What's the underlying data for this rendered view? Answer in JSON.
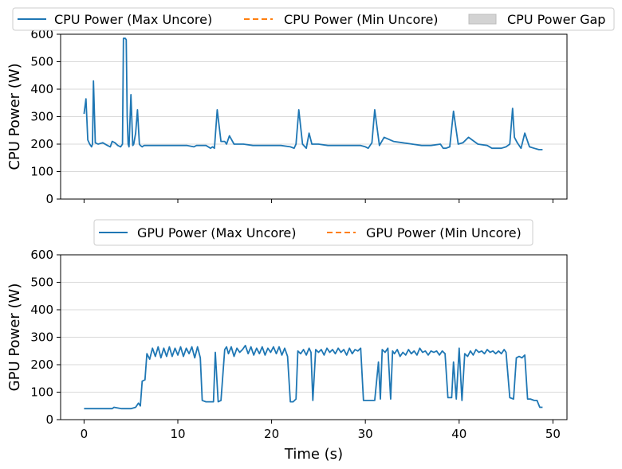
{
  "chart_data": [
    {
      "type": "line",
      "ylabel": "CPU Power (W)",
      "xlabel": "",
      "xlim": [
        -2.5,
        51.5
      ],
      "ylim": [
        0,
        600
      ],
      "yticks": [
        0,
        100,
        200,
        300,
        400,
        500,
        600
      ],
      "xticks": [
        0,
        10,
        20,
        30,
        40,
        50
      ],
      "show_xtick_labels": false,
      "grid": "y",
      "legend": {
        "placement": "top, above axes",
        "entries": [
          {
            "label": "CPU Power (Max Uncore)",
            "style": "solid",
            "color": "#1f77b4"
          },
          {
            "label": "CPU Power (Min Uncore)",
            "style": "dashed",
            "color": "#ff7f0e"
          },
          {
            "label": "CPU Power Gap",
            "style": "fill",
            "color": "#d3d3d3"
          }
        ]
      },
      "series": [
        {
          "name": "CPU Power (Max Uncore)",
          "color": "#1f77b4",
          "x": [
            0.0,
            0.2,
            0.4,
            0.6,
            0.8,
            0.9,
            1.0,
            1.2,
            1.5,
            2.0,
            2.5,
            2.8,
            3.0,
            3.3,
            3.6,
            3.9,
            4.1,
            4.2,
            4.4,
            4.5,
            4.6,
            4.7,
            4.8,
            5.0,
            5.2,
            5.3,
            5.5,
            5.7,
            5.9,
            6.0,
            6.2,
            6.4,
            6.6,
            7.0,
            8.0,
            9.0,
            10.0,
            11.0,
            11.7,
            12.0,
            13.0,
            13.5,
            13.7,
            13.9,
            14.2,
            14.6,
            15.0,
            15.2,
            15.5,
            16.0,
            17.0,
            18.0,
            19.0,
            20.0,
            21.0,
            22.0,
            22.4,
            22.6,
            22.9,
            23.3,
            23.7,
            24.0,
            24.3,
            25.0,
            26.0,
            27.0,
            28.0,
            29.0,
            29.5,
            30.0,
            30.3,
            30.7,
            31.0,
            31.5,
            32.0,
            33.0,
            34.0,
            35.0,
            36.0,
            37.0,
            38.0,
            38.3,
            38.6,
            39.0,
            39.4,
            39.9,
            40.4,
            41.0,
            42.0,
            43.0,
            43.5,
            44.0,
            44.5,
            45.0,
            45.4,
            45.7,
            45.9,
            46.2,
            46.6,
            47.0,
            47.5,
            48.0,
            48.5,
            48.9
          ],
          "values": [
            310,
            365,
            215,
            200,
            190,
            200,
            430,
            205,
            200,
            205,
            195,
            190,
            210,
            205,
            195,
            190,
            200,
            585,
            585,
            580,
            300,
            200,
            190,
            380,
            195,
            200,
            240,
            325,
            200,
            195,
            190,
            195,
            195,
            195,
            195,
            195,
            195,
            195,
            190,
            195,
            195,
            185,
            190,
            185,
            325,
            210,
            210,
            200,
            230,
            200,
            200,
            195,
            195,
            195,
            195,
            190,
            185,
            200,
            325,
            200,
            185,
            240,
            200,
            200,
            195,
            195,
            195,
            195,
            195,
            190,
            185,
            205,
            325,
            195,
            225,
            210,
            205,
            200,
            195,
            195,
            200,
            185,
            185,
            190,
            320,
            200,
            205,
            225,
            200,
            195,
            185,
            185,
            185,
            190,
            200,
            330,
            225,
            205,
            185,
            240,
            190,
            185,
            180,
            180
          ]
        }
      ]
    },
    {
      "type": "line",
      "ylabel": "GPU Power (W)",
      "xlabel": "Time (s)",
      "xlim": [
        -2.5,
        51.5
      ],
      "ylim": [
        0,
        600
      ],
      "yticks": [
        0,
        100,
        200,
        300,
        400,
        500,
        600
      ],
      "xticks": [
        0,
        10,
        20,
        30,
        40,
        50
      ],
      "xtick_labels": [
        "0",
        "10",
        "20",
        "30",
        "40",
        "50"
      ],
      "grid": "y",
      "legend": {
        "placement": "top, above axes",
        "entries": [
          {
            "label": "GPU Power (Max Uncore)",
            "style": "solid",
            "color": "#1f77b4"
          },
          {
            "label": "GPU Power (Min Uncore)",
            "style": "dashed",
            "color": "#ff7f0e"
          }
        ]
      },
      "series": [
        {
          "name": "GPU Power (Max Uncore)",
          "color": "#1f77b4",
          "x": [
            0.0,
            1.0,
            2.0,
            3.0,
            3.2,
            4.0,
            5.0,
            5.5,
            5.8,
            6.0,
            6.2,
            6.5,
            6.7,
            7.0,
            7.3,
            7.6,
            7.9,
            8.2,
            8.5,
            8.8,
            9.1,
            9.4,
            9.7,
            10.0,
            10.3,
            10.6,
            10.9,
            11.2,
            11.5,
            11.8,
            12.1,
            12.4,
            12.6,
            13.0,
            13.5,
            13.8,
            14.0,
            14.3,
            14.6,
            15.0,
            15.2,
            15.4,
            15.7,
            16.0,
            16.3,
            16.6,
            16.9,
            17.2,
            17.5,
            17.8,
            18.1,
            18.4,
            18.7,
            19.0,
            19.3,
            19.6,
            19.9,
            20.2,
            20.5,
            20.8,
            21.1,
            21.4,
            21.7,
            22.0,
            22.3,
            22.6,
            22.8,
            23.1,
            23.4,
            23.7,
            24.0,
            24.2,
            24.4,
            24.7,
            25.0,
            25.3,
            25.6,
            25.9,
            26.2,
            26.5,
            26.8,
            27.1,
            27.4,
            27.7,
            28.0,
            28.3,
            28.6,
            28.9,
            29.2,
            29.5,
            29.8,
            30.0,
            30.5,
            31.0,
            31.4,
            31.6,
            31.8,
            32.1,
            32.4,
            32.7,
            32.9,
            33.1,
            33.4,
            33.7,
            34.0,
            34.3,
            34.6,
            34.9,
            35.2,
            35.5,
            35.8,
            36.1,
            36.4,
            36.7,
            37.0,
            37.3,
            37.6,
            37.9,
            38.2,
            38.5,
            38.8,
            39.0,
            39.2,
            39.4,
            39.7,
            40.0,
            40.3,
            40.6,
            40.9,
            41.2,
            41.5,
            41.8,
            42.1,
            42.4,
            42.7,
            43.0,
            43.3,
            43.6,
            43.9,
            44.2,
            44.5,
            44.8,
            45.0,
            45.4,
            45.8,
            46.1,
            46.4,
            46.7,
            47.0,
            47.3,
            47.6,
            48.0,
            48.3,
            48.6,
            48.9
          ],
          "values": [
            40,
            40,
            40,
            40,
            45,
            40,
            40,
            45,
            60,
            50,
            140,
            145,
            240,
            220,
            260,
            230,
            265,
            225,
            260,
            230,
            265,
            230,
            260,
            235,
            265,
            230,
            260,
            240,
            265,
            225,
            265,
            225,
            70,
            65,
            65,
            65,
            245,
            65,
            70,
            255,
            265,
            240,
            265,
            230,
            260,
            245,
            255,
            270,
            240,
            265,
            235,
            260,
            240,
            265,
            235,
            260,
            245,
            265,
            240,
            265,
            235,
            260,
            230,
            65,
            65,
            75,
            250,
            240,
            255,
            235,
            260,
            245,
            70,
            255,
            245,
            255,
            235,
            260,
            245,
            255,
            240,
            260,
            245,
            255,
            235,
            260,
            240,
            255,
            250,
            260,
            70,
            70,
            70,
            70,
            210,
            75,
            255,
            245,
            260,
            75,
            250,
            240,
            255,
            230,
            245,
            235,
            255,
            240,
            250,
            235,
            260,
            245,
            250,
            235,
            250,
            245,
            250,
            235,
            250,
            240,
            80,
            80,
            80,
            210,
            75,
            260,
            70,
            240,
            230,
            250,
            235,
            255,
            245,
            250,
            240,
            255,
            245,
            250,
            240,
            250,
            240,
            255,
            245,
            80,
            75,
            225,
            230,
            225,
            235,
            75,
            75,
            70,
            70,
            45,
            45
          ]
        }
      ]
    }
  ]
}
